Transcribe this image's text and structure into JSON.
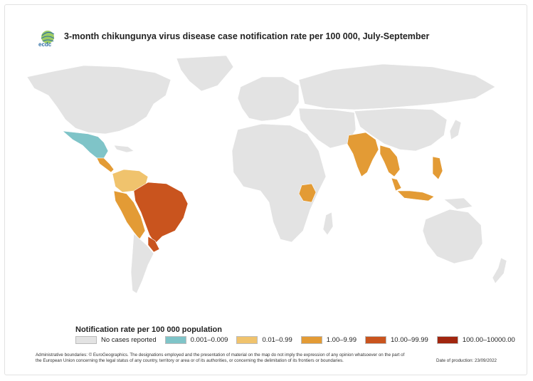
{
  "title": "3-month chikungunya virus disease case notification rate per 100 000, July-September",
  "logo": {
    "text": "ecdc"
  },
  "legend": {
    "title": "Notification rate per 100 000 population",
    "items": [
      {
        "label": "No cases reported",
        "color": "#e3e3e3"
      },
      {
        "label": "0.001–0.009",
        "color": "#7fc4c8"
      },
      {
        "label": "0.01–0.99",
        "color": "#f0c36d"
      },
      {
        "label": "1.00–9.99",
        "color": "#e39b35"
      },
      {
        "label": "10.00–99.99",
        "color": "#c9541e"
      },
      {
        "label": "100.00–10000.00",
        "color": "#a1260f"
      }
    ]
  },
  "footer": {
    "disclaimer": "Administrative boundaries: © EuroGeographics. The designations employed and the presentation of material on the map do not imply the expression of any opinion whatsoever on the part of the European Union concerning the legal status of any country, territory or area or of its authorities, or concerning the delimitation of its frontiers or boundaries.",
    "production_date": "Date of production: 23/09/2022"
  },
  "regions": [
    {
      "name": "North America",
      "category": "No cases reported"
    },
    {
      "name": "Mexico",
      "category": "0.001–0.009"
    },
    {
      "name": "Central America",
      "category": "1.00–9.99"
    },
    {
      "name": "Colombia / Venezuela",
      "category": "0.01–0.99"
    },
    {
      "name": "Peru / Bolivia",
      "category": "1.00–9.99"
    },
    {
      "name": "Brazil",
      "category": "10.00–99.99"
    },
    {
      "name": "Paraguay",
      "category": "10.00–99.99"
    },
    {
      "name": "Kenya",
      "category": "1.00–9.99"
    },
    {
      "name": "India",
      "category": "1.00–9.99"
    },
    {
      "name": "Myanmar / Thailand",
      "category": "1.00–9.99"
    },
    {
      "name": "Malaysia / Indonesia",
      "category": "1.00–9.99"
    },
    {
      "name": "Philippines",
      "category": "1.00–9.99"
    }
  ]
}
